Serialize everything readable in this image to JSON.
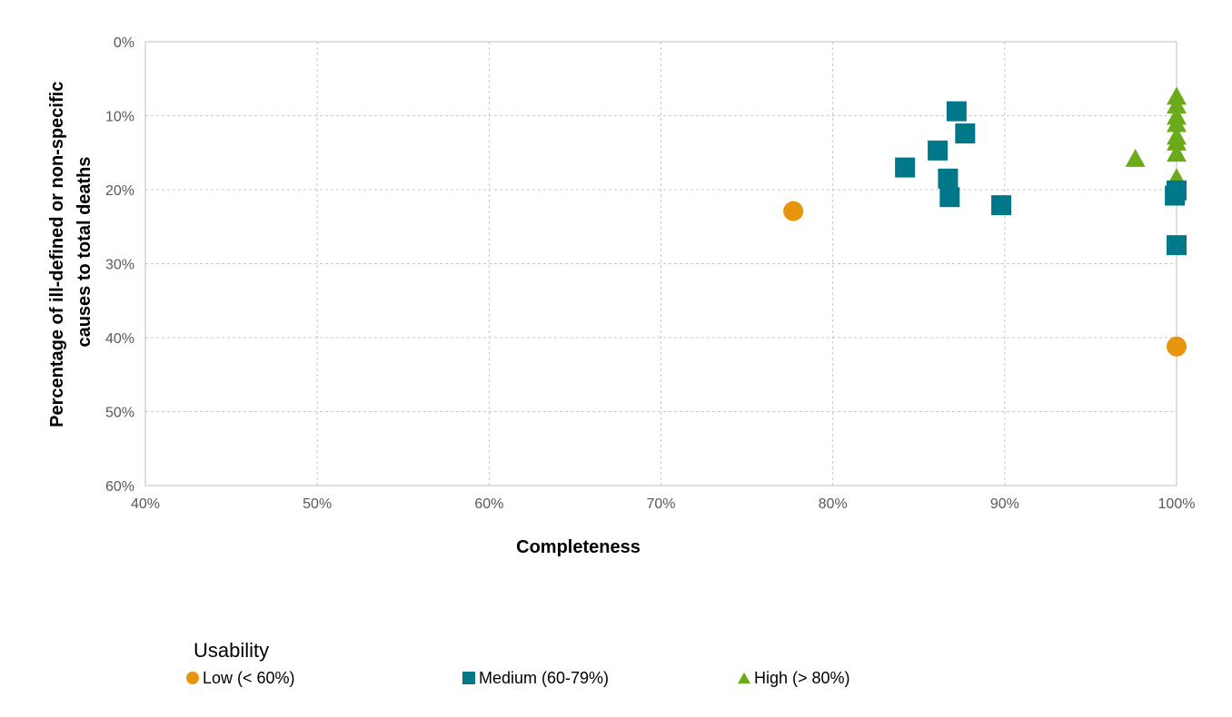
{
  "chart_data": {
    "type": "scatter",
    "xlabel": "Completeness",
    "ylabel_lines": [
      "Percentage of ill-defined or non-specific",
      "causes to total deaths"
    ],
    "xlim": [
      0.4,
      1.0
    ],
    "ylim": [
      0,
      0.6
    ],
    "y_inverted": true,
    "grid": true,
    "x_ticks": [
      {
        "value": 0.4,
        "label": "40%"
      },
      {
        "value": 0.5,
        "label": "50%"
      },
      {
        "value": 0.6,
        "label": "60%"
      },
      {
        "value": 0.7,
        "label": "70%"
      },
      {
        "value": 0.8,
        "label": "80%"
      },
      {
        "value": 0.9,
        "label": "90%"
      },
      {
        "value": 1.0,
        "label": "100%"
      }
    ],
    "y_ticks": [
      {
        "value": 0.0,
        "label": "0%"
      },
      {
        "value": 0.1,
        "label": "10%"
      },
      {
        "value": 0.2,
        "label": "20%"
      },
      {
        "value": 0.3,
        "label": "30%"
      },
      {
        "value": 0.4,
        "label": "40%"
      },
      {
        "value": 0.5,
        "label": "50%"
      },
      {
        "value": 0.6,
        "label": "60%"
      }
    ],
    "legend": {
      "title": "Usability",
      "position": "bottom"
    },
    "series": [
      {
        "name": "Low (< 60%)",
        "marker": "circle",
        "color": "#E8950E",
        "points": [
          {
            "x": 0.777,
            "y": 0.229
          },
          {
            "x": 1.0,
            "y": 0.412
          }
        ]
      },
      {
        "name": "Medium (60-79%)",
        "marker": "square",
        "color": "#00788A",
        "points": [
          {
            "x": 0.842,
            "y": 0.17
          },
          {
            "x": 0.861,
            "y": 0.147
          },
          {
            "x": 0.867,
            "y": 0.185
          },
          {
            "x": 0.868,
            "y": 0.21
          },
          {
            "x": 0.872,
            "y": 0.094
          },
          {
            "x": 0.877,
            "y": 0.124
          },
          {
            "x": 0.898,
            "y": 0.221
          },
          {
            "x": 1.0,
            "y": 0.201
          },
          {
            "x": 0.999,
            "y": 0.208
          },
          {
            "x": 1.0,
            "y": 0.275
          }
        ]
      },
      {
        "name": "High (> 80%)",
        "marker": "triangle",
        "color": "#6AAA1B",
        "points": [
          {
            "x": 0.976,
            "y": 0.157
          },
          {
            "x": 1.0,
            "y": 0.073
          },
          {
            "x": 1.0,
            "y": 0.085
          },
          {
            "x": 1.0,
            "y": 0.1
          },
          {
            "x": 1.0,
            "y": 0.11
          },
          {
            "x": 1.0,
            "y": 0.127
          },
          {
            "x": 1.0,
            "y": 0.135
          },
          {
            "x": 1.0,
            "y": 0.15
          },
          {
            "x": 1.0,
            "y": 0.183
          }
        ]
      }
    ]
  }
}
